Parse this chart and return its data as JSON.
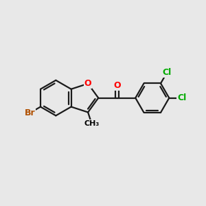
{
  "background_color": "#e8e8e8",
  "bond_color": "#1a1a1a",
  "atom_colors": {
    "Br": "#b05000",
    "O_ring": "#ff0000",
    "O_carbonyl": "#ff0000",
    "Cl": "#00aa00",
    "C": "#000000"
  },
  "figsize": [
    3.0,
    3.0
  ],
  "dpi": 100,
  "xlim": [
    0,
    12
  ],
  "ylim": [
    0,
    12
  ]
}
